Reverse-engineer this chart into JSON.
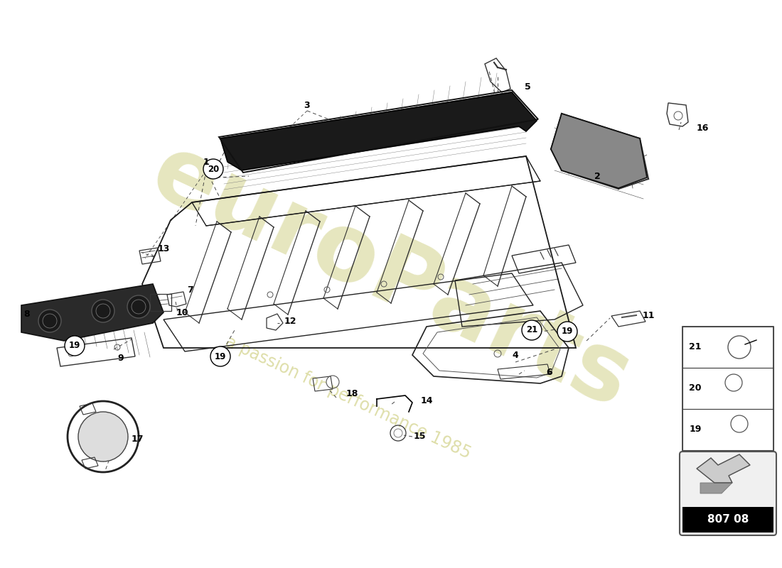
{
  "page_code": "807 08",
  "background_color": "#ffffff",
  "watermark_text": "euroParts",
  "watermark_subtext": "a passion for performance 1985",
  "watermark_color": "#c8c870"
}
